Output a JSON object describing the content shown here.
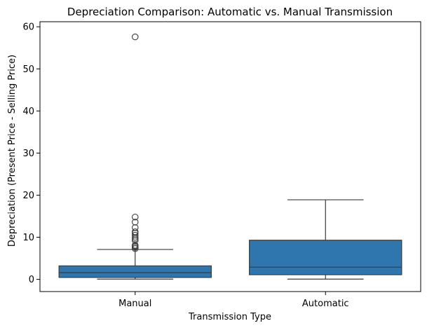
{
  "chart_data": {
    "type": "box",
    "title": "Depreciation Comparison: Automatic vs. Manual Transmission",
    "xlabel": "Transmission Type",
    "ylabel": "Depreciation (Present Price - Selling Price)",
    "ylim": [
      -2.9,
      61.2
    ],
    "yticks": [
      0,
      10,
      20,
      30,
      40,
      50,
      60
    ],
    "categories": [
      "Manual",
      "Automatic"
    ],
    "colors": {
      "box": "#2f76ae",
      "line": "#3a3a3a",
      "outlier": "#3a3a3a"
    },
    "boxes": [
      {
        "category": "Manual",
        "whisker_low": 0.05,
        "q1": 0.45,
        "median": 1.6,
        "q3": 3.2,
        "whisker_high": 7.1,
        "outliers": [
          7.3,
          7.6,
          7.9,
          8.1,
          9.2,
          9.6,
          10.0,
          10.5,
          11.0,
          11.3,
          12.3,
          13.6,
          14.8,
          57.6
        ]
      },
      {
        "category": "Automatic",
        "whisker_low": 0.05,
        "q1": 1.1,
        "median": 2.9,
        "q3": 9.3,
        "whisker_high": 18.9,
        "outliers": []
      }
    ],
    "grid": false,
    "legend": "none"
  }
}
